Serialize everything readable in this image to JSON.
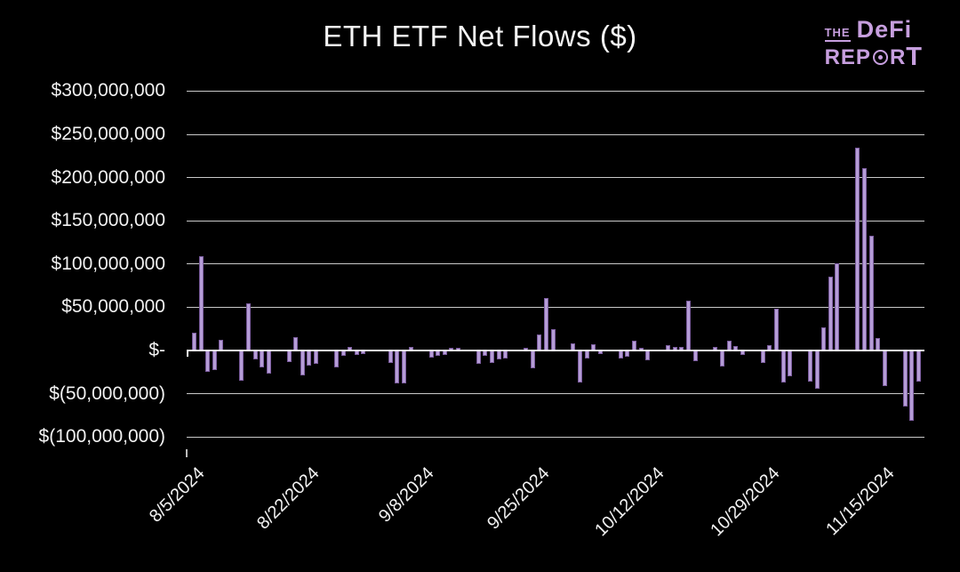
{
  "title": "ETH ETF Net Flows ($)",
  "logo": {
    "the": "THE",
    "defi": "DeFi",
    "rep": "REP",
    "r": "R",
    "t": "T"
  },
  "colors": {
    "background": "#000000",
    "bar_fill": "#b59dd6",
    "bar_edge": "#7b5c9e",
    "grid_line": "#c9c9c9",
    "zero_line": "#f0f0f0",
    "text": "#f2f2f2",
    "logo_purple": "#c79fdf"
  },
  "chart_data": {
    "type": "bar",
    "title": "ETH ETF Net Flows ($)",
    "unit": "USD",
    "values_unit": "millions of USD",
    "ylim_usd": [
      -100000000,
      300000000
    ],
    "grid": true,
    "legend": "none",
    "y_ticks": [
      {
        "label": "$300,000,000",
        "value_musd": 300
      },
      {
        "label": "$250,000,000",
        "value_musd": 250
      },
      {
        "label": "$200,000,000",
        "value_musd": 200
      },
      {
        "label": "$150,000,000",
        "value_musd": 150
      },
      {
        "label": "$100,000,000",
        "value_musd": 100
      },
      {
        "label": "$50,000,000",
        "value_musd": 50
      },
      {
        "label": "$-",
        "value_musd": 0
      },
      {
        "label": "$(50,000,000)",
        "value_musd": -50
      },
      {
        "label": "$(100,000,000)",
        "value_musd": -100
      }
    ],
    "x_ticks": [
      {
        "label": "8/5/2024",
        "day_index": 0
      },
      {
        "label": "8/22/2024",
        "day_index": 17
      },
      {
        "label": "9/8/2024",
        "day_index": 34
      },
      {
        "label": "9/25/2024",
        "day_index": 51
      },
      {
        "label": "10/12/2024",
        "day_index": 68
      },
      {
        "label": "10/29/2024",
        "day_index": 85
      },
      {
        "label": "11/15/2024",
        "day_index": 102
      }
    ],
    "dates": [
      "8/5/2024",
      "8/6/2024",
      "8/7/2024",
      "8/8/2024",
      "8/9/2024",
      "8/10/2024",
      "8/11/2024",
      "8/12/2024",
      "8/13/2024",
      "8/14/2024",
      "8/15/2024",
      "8/16/2024",
      "8/17/2024",
      "8/18/2024",
      "8/19/2024",
      "8/20/2024",
      "8/21/2024",
      "8/22/2024",
      "8/23/2024",
      "8/24/2024",
      "8/25/2024",
      "8/26/2024",
      "8/27/2024",
      "8/28/2024",
      "8/29/2024",
      "8/30/2024",
      "8/31/2024",
      "9/1/2024",
      "9/2/2024",
      "9/3/2024",
      "9/4/2024",
      "9/5/2024",
      "9/6/2024",
      "9/7/2024",
      "9/8/2024",
      "9/9/2024",
      "9/10/2024",
      "9/11/2024",
      "9/12/2024",
      "9/13/2024",
      "9/14/2024",
      "9/15/2024",
      "9/16/2024",
      "9/17/2024",
      "9/18/2024",
      "9/19/2024",
      "9/20/2024",
      "9/21/2024",
      "9/22/2024",
      "9/23/2024",
      "9/24/2024",
      "9/25/2024",
      "9/26/2024",
      "9/27/2024",
      "9/28/2024",
      "9/29/2024",
      "9/30/2024",
      "10/1/2024",
      "10/2/2024",
      "10/3/2024",
      "10/4/2024",
      "10/5/2024",
      "10/6/2024",
      "10/7/2024",
      "10/8/2024",
      "10/9/2024",
      "10/10/2024",
      "10/11/2024",
      "10/12/2024",
      "10/13/2024",
      "10/14/2024",
      "10/15/2024",
      "10/16/2024",
      "10/17/2024",
      "10/18/2024",
      "10/19/2024",
      "10/20/2024",
      "10/21/2024",
      "10/22/2024",
      "10/23/2024",
      "10/24/2024",
      "10/25/2024",
      "10/26/2024",
      "10/27/2024",
      "10/28/2024",
      "10/29/2024",
      "10/30/2024",
      "10/31/2024",
      "11/1/2024",
      "11/2/2024",
      "11/3/2024",
      "11/4/2024",
      "11/5/2024",
      "11/6/2024",
      "11/7/2024",
      "11/8/2024",
      "11/9/2024",
      "11/10/2024",
      "11/11/2024",
      "11/12/2024",
      "11/13/2024",
      "11/14/2024",
      "11/15/2024",
      "11/16/2024",
      "11/17/2024",
      "11/18/2024",
      "11/19/2024",
      "11/20/2024"
    ],
    "values_musd": [
      21,
      109,
      -25,
      -23,
      12,
      0,
      0,
      -35,
      55,
      -10,
      -20,
      -27,
      0,
      0,
      -13,
      15,
      -29,
      -18,
      -15,
      0,
      0,
      -20,
      -6,
      4,
      -5,
      -4,
      0,
      0,
      0,
      -14,
      -38,
      -38,
      4,
      0,
      0,
      -8,
      -6,
      -5,
      3,
      3,
      0,
      0,
      -15,
      -6,
      -14,
      -10,
      -9,
      0,
      0,
      3,
      -21,
      19,
      61,
      25,
      0,
      0,
      8,
      -37,
      -9,
      7,
      -4,
      0,
      0,
      -9,
      -7,
      11,
      3,
      -11,
      0,
      0,
      6,
      4,
      4,
      58,
      -12,
      0,
      0,
      4,
      -19,
      11,
      5,
      -5,
      0,
      0,
      -14,
      6,
      48,
      -37,
      -30,
      0,
      0,
      -36,
      -44,
      27,
      85,
      101,
      0,
      0,
      235,
      211,
      133,
      14,
      -41,
      0,
      0,
      -65,
      -81,
      -36
    ]
  }
}
